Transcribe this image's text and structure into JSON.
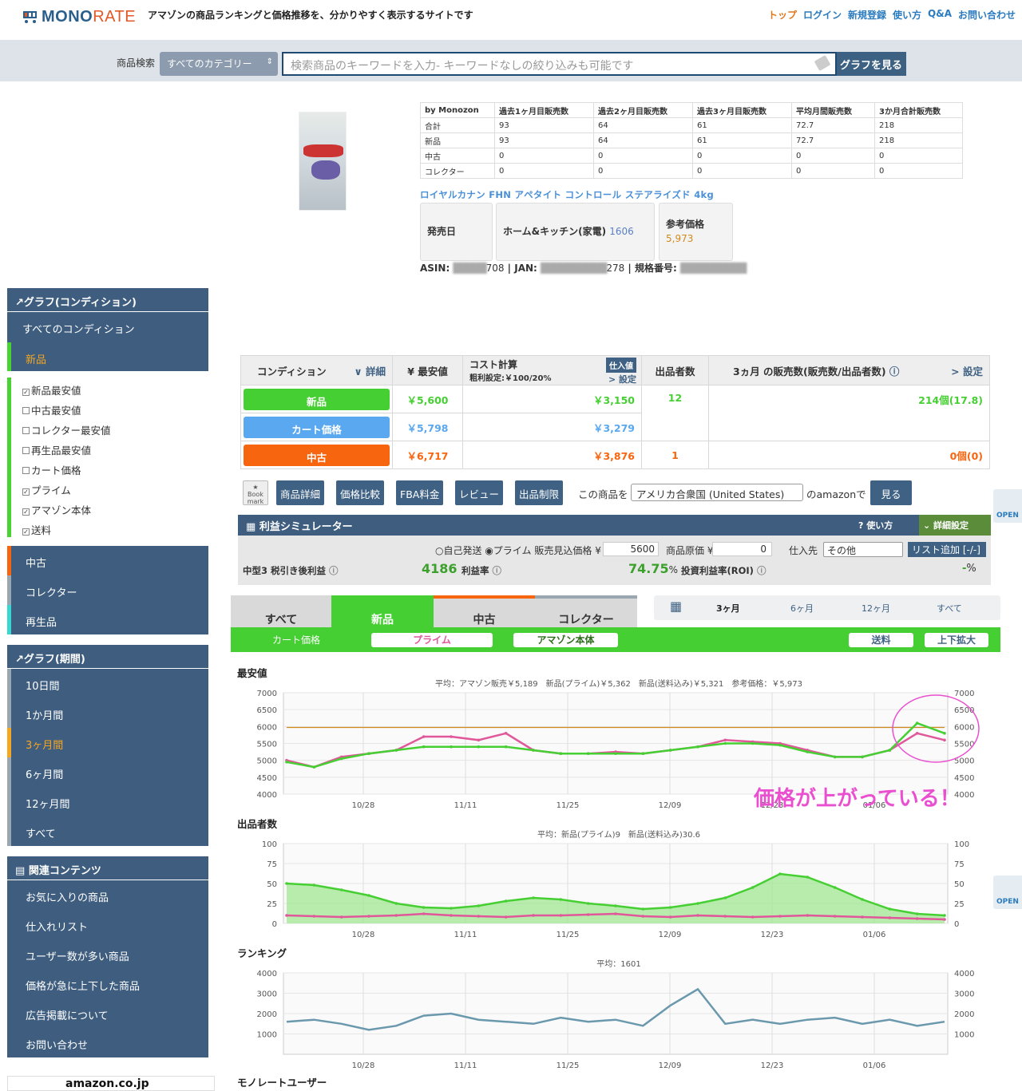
{
  "header": {
    "logo_main": "MONO",
    "logo_sub": "RATE",
    "tagline": "アマゾンの商品ランキングと価格推移を、分かりやすく表示するサイトです",
    "nav": [
      "トップ",
      "ログイン",
      "新規登録",
      "使い方",
      "Q&A",
      "お問い合わせ"
    ]
  },
  "search": {
    "label": "商品検索",
    "category": "すべてのカテゴリー",
    "placeholder": "検索商品のキーワードを入力- キーワードなしの絞り込みも可能です",
    "button": "グラフを見る"
  },
  "sidebar": {
    "cond_title": "グラフ(コンディション)",
    "cond_items": [
      "すべてのコンディション",
      "新品"
    ],
    "checks": [
      {
        "label": "新品最安値",
        "on": true
      },
      {
        "label": "中古最安値",
        "on": false
      },
      {
        "label": "コレクター最安値",
        "on": false
      },
      {
        "label": "再生品最安値",
        "on": false
      },
      {
        "label": "カート価格",
        "on": false
      },
      {
        "label": "プライム",
        "on": true
      },
      {
        "label": "アマゾン本体",
        "on": true
      },
      {
        "label": "送料",
        "on": true
      }
    ],
    "cond_items2": [
      "中古",
      "コレクター",
      "再生品"
    ],
    "period_title": "グラフ(期間)",
    "period_items": [
      "10日間",
      "1か月間",
      "3ヶ月間",
      "6ヶ月間",
      "12ヶ月間",
      "すべて"
    ],
    "related_title": "関連コンテンツ",
    "related_items": [
      "お気に入りの商品",
      "仕入れリスト",
      "ユーザー数が多い商品",
      "価格が急に上下した商品",
      "広告掲載について",
      "お問い合わせ"
    ],
    "ad": "amazon.co.jp"
  },
  "sales": {
    "headers": [
      "by Monozon",
      "過去1ヶ月目販売数",
      "過去2ヶ月目販売数",
      "過去3ヶ月目販売数",
      "平均月間販売数",
      "3か月合計販売数"
    ],
    "rows": [
      [
        "合計",
        "93",
        "64",
        "61",
        "72.7",
        "218"
      ],
      [
        "新品",
        "93",
        "64",
        "61",
        "72.7",
        "218"
      ],
      [
        "中古",
        "0",
        "0",
        "0",
        "0",
        "0"
      ],
      [
        "コレクター",
        "0",
        "0",
        "0",
        "0",
        "0"
      ]
    ]
  },
  "product": {
    "title": "ロイヤルカナン FHN アペタイト コントロール ステアライズド 4kg",
    "release_label": "発売日",
    "category": "ホーム&キッチン(家電)",
    "category_rank": "1606",
    "ref_label": "参考価格",
    "ref_price": "5,973",
    "asin_label": "ASIN",
    "asin_tail": "708",
    "jan_label": "JAN",
    "jan_tail": "278",
    "model_label": "規格番号"
  },
  "cond_table": {
    "h_cond": "コンディション",
    "h_detail": "∨ 詳細",
    "h_min": "¥ 最安値",
    "h_cost": "コスト計算",
    "h_cost_sub": "粗利設定:￥100/20%",
    "h_cost_btn": "仕入値",
    "h_set": "> 設定",
    "h_sellers": "出品者数",
    "h_sales": "3ヵ月 の販売数(販売数/出品者数)",
    "h_set2": "> 設定",
    "rows": [
      {
        "name": "新品",
        "price": "￥5,600",
        "cost": "￥3,150",
        "sellers": "12",
        "sales": "214個(17.8)",
        "color": "#46cf33"
      },
      {
        "name": "カート価格",
        "price": "￥5,798",
        "cost": "￥3,279",
        "sellers": "",
        "sales": "",
        "color": "#5aa8ef"
      },
      {
        "name": "中古",
        "price": "￥6,717",
        "cost": "￥3,876",
        "sellers": "1",
        "sales": "0個(0)",
        "color": "#f8650f"
      }
    ]
  },
  "nav_buttons": {
    "bookmark": "Book mark",
    "items": [
      "商品詳細",
      "価格比較",
      "FBA料金",
      "レビュー",
      "出品制限"
    ],
    "country_label": "この商品を",
    "country": "アメリカ合衆国 (United States)",
    "amazon_label": "のamazonで",
    "view": "見る"
  },
  "sim": {
    "title": "利益シミュレーター",
    "howto": "使い方",
    "detail": "詳細設定",
    "self": "自己発送",
    "prime": "プライム",
    "sale_label": "販売見込価格 ¥",
    "sale": "5600",
    "cost_label": "商品原価 ¥",
    "cost": "0",
    "src_label": "仕入先",
    "src": "その他",
    "list_btn": "リスト追加 [-/-]",
    "profit_label": "中型3 税引き後利益",
    "profit": "4186",
    "rate_label": "利益率",
    "rate": "74.75",
    "rate_unit": "%",
    "roi_label": "投資利益率(ROI)",
    "roi": "-",
    "roi_unit": "%"
  },
  "graph_tabs": [
    "すべて",
    "新品",
    "中古",
    "コレクター"
  ],
  "periods": [
    "3ヶ月",
    "6ヶ月",
    "12ヶ月",
    "すべて"
  ],
  "sub_tabs": [
    "カート価格",
    "プライム",
    "アマゾン本体",
    "送料",
    "上下拡大"
  ],
  "annotation": "価格が上がっている！",
  "open": "OPEN",
  "chart_data": [
    {
      "type": "line",
      "title": "最安値",
      "subtitle": "平均：アマゾン販売￥5,189　新品(プライム)￥5,362　新品(送料込み)￥5,321　参考価格：￥5,973",
      "ylim": [
        4000,
        7000
      ],
      "yticks": [
        4000,
        4500,
        5000,
        5500,
        6000,
        6500,
        7000
      ],
      "xticks": [
        "10/28",
        "11/11",
        "11/25",
        "12/09",
        "12/23",
        "01/06"
      ],
      "series": [
        {
          "name": "参考価格",
          "color": "#d08a1a",
          "values": [
            5973,
            5973,
            5973,
            5973,
            5973,
            5973,
            5973,
            5973,
            5973,
            5973,
            5973,
            5973,
            5973,
            5973,
            5973,
            5973,
            5973,
            5973,
            5973,
            5973,
            5973,
            5973,
            5973,
            5973,
            5973
          ]
        },
        {
          "name": "新品(プライム)",
          "color": "#e0579a",
          "values": [
            5000,
            4800,
            5100,
            5200,
            5300,
            5700,
            5700,
            5600,
            5800,
            5300,
            5200,
            5200,
            5250,
            5200,
            5300,
            5400,
            5600,
            5550,
            5500,
            5300,
            5100,
            5100,
            5300,
            5800,
            5600
          ]
        },
        {
          "name": "新品(送料込み)",
          "color": "#46cf33",
          "values": [
            4950,
            4800,
            5050,
            5200,
            5300,
            5400,
            5400,
            5400,
            5400,
            5300,
            5200,
            5200,
            5200,
            5200,
            5300,
            5400,
            5500,
            5500,
            5450,
            5250,
            5100,
            5100,
            5300,
            6100,
            5800
          ]
        }
      ]
    },
    {
      "type": "area",
      "title": "出品者数",
      "subtitle": "平均：新品(プライム)9　新品(送料込み)30.6",
      "ylim": [
        0,
        100
      ],
      "yticks": [
        0,
        25,
        50,
        75,
        100
      ],
      "xticks": [
        "10/28",
        "11/11",
        "11/25",
        "12/09",
        "12/23",
        "01/06"
      ],
      "series": [
        {
          "name": "新品(送料込み)",
          "color": "#46cf33",
          "values": [
            50,
            48,
            42,
            35,
            25,
            20,
            19,
            22,
            28,
            32,
            30,
            25,
            22,
            18,
            20,
            25,
            32,
            45,
            62,
            58,
            45,
            30,
            18,
            12,
            10
          ]
        },
        {
          "name": "新品(プライム)",
          "color": "#e0579a",
          "values": [
            10,
            9,
            8,
            9,
            10,
            12,
            10,
            9,
            8,
            10,
            10,
            11,
            12,
            9,
            8,
            10,
            9,
            8,
            9,
            10,
            9,
            8,
            7,
            6,
            5
          ]
        }
      ]
    },
    {
      "type": "line",
      "title": "ランキング",
      "subtitle": "平均：1601",
      "ylim": [
        0,
        4000
      ],
      "yticks": [
        1000,
        2000,
        3000,
        4000
      ],
      "xticks": [
        "10/28",
        "11/11",
        "11/25",
        "12/09",
        "12/23",
        "01/06"
      ],
      "series": [
        {
          "name": "ランキング",
          "color": "#6a98ad",
          "values": [
            1600,
            1700,
            1500,
            1200,
            1400,
            1900,
            2000,
            1700,
            1600,
            1500,
            1800,
            1600,
            1700,
            1400,
            2400,
            3200,
            1500,
            1700,
            1500,
            1700,
            1800,
            1500,
            1700,
            1400,
            1600
          ]
        }
      ]
    }
  ],
  "next_section": "モノレートユーザー"
}
